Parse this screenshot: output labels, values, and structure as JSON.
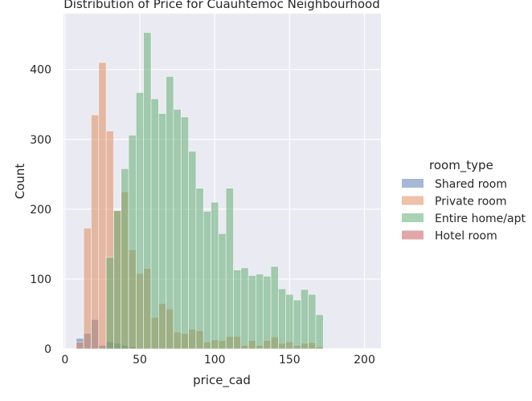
{
  "chart_data": {
    "type": "histogram",
    "title": "Distribution of Price for Cuauhtemoc Neighbourhood",
    "xlabel": "price_cad",
    "ylabel": "Count",
    "xlim": [
      -1,
      211
    ],
    "ylim": [
      0,
      480
    ],
    "xticks": [
      0,
      50,
      100,
      150,
      200
    ],
    "yticks": [
      0,
      100,
      200,
      300,
      400
    ],
    "grid": true,
    "legend_title": "room_type",
    "legend_position": "right",
    "bin_start": 7.5,
    "bin_width": 5,
    "series": [
      {
        "name": "Shared room",
        "color": "#4c72b0",
        "values": [
          15,
          22,
          42,
          5,
          10,
          8,
          5,
          3,
          0,
          0,
          0,
          0,
          0,
          0,
          0,
          0,
          0,
          0,
          0,
          0,
          0,
          0,
          0,
          0,
          0,
          0,
          0,
          0,
          0,
          0,
          0,
          0,
          0,
          0,
          0,
          0,
          0,
          0,
          0
        ]
      },
      {
        "name": "Private room",
        "color": "#dd8452",
        "values": [
          10,
          173,
          335,
          410,
          312,
          198,
          225,
          142,
          108,
          115,
          45,
          65,
          57,
          24,
          22,
          28,
          26,
          10,
          13,
          12,
          18,
          18,
          5,
          12,
          5,
          12,
          17,
          8,
          10,
          5,
          8,
          9,
          3,
          0,
          0,
          0,
          0,
          0,
          0
        ]
      },
      {
        "name": "Entire home/apt",
        "color": "#55a868",
        "values": [
          0,
          0,
          0,
          0,
          131,
          198,
          258,
          306,
          367,
          453,
          358,
          337,
          390,
          343,
          332,
          283,
          230,
          197,
          210,
          165,
          230,
          113,
          116,
          105,
          107,
          104,
          118,
          86,
          78,
          70,
          85,
          78,
          49,
          0,
          0,
          0,
          0,
          0,
          0
        ]
      },
      {
        "name": "Hotel room",
        "color": "#c44e52",
        "values": [
          0,
          0,
          0,
          0,
          0,
          0,
          0,
          0,
          0,
          0,
          0,
          0,
          0,
          0,
          0,
          0,
          0,
          0,
          0,
          0,
          0,
          0,
          0,
          0,
          0,
          0,
          0,
          0,
          0,
          0,
          0,
          0,
          0,
          0,
          0,
          0,
          0,
          0,
          0
        ]
      }
    ]
  }
}
